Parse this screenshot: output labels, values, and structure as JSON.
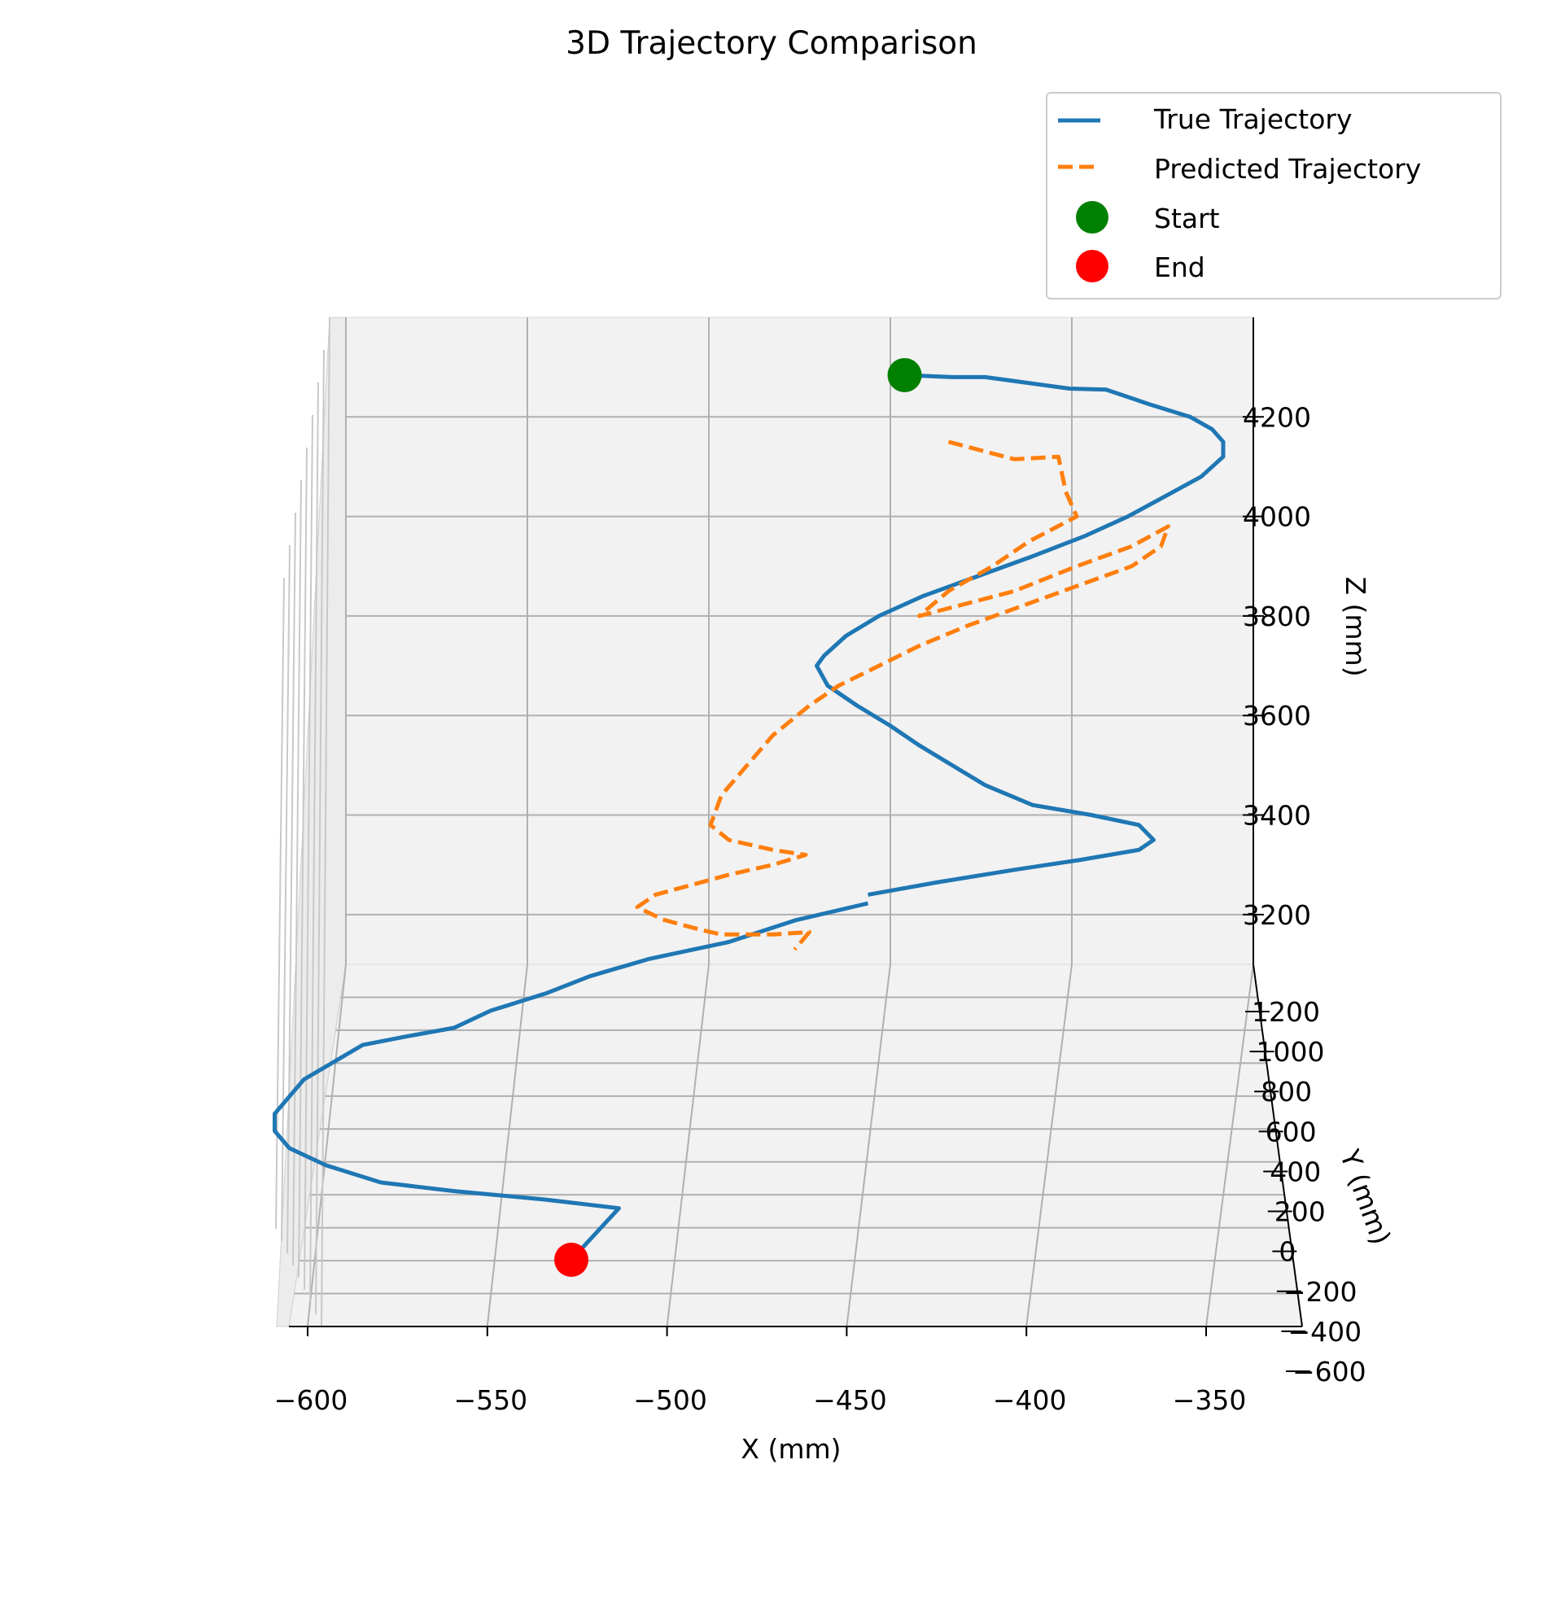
{
  "chart_data": {
    "type": "line",
    "projection": "3d",
    "title": "3D Trajectory Comparison",
    "xlabel": "X (mm)",
    "ylabel": "Y (mm)",
    "zlabel": "Z (mm)",
    "xticks": [
      -600,
      -550,
      -500,
      -450,
      -400,
      -350
    ],
    "xtick_labels": [
      "−600",
      "−550",
      "−500",
      "−450",
      "−400",
      "−350"
    ],
    "yticks": [
      1200,
      1000,
      800,
      600,
      400,
      200,
      0,
      -200,
      -400,
      -600
    ],
    "ytick_labels": [
      "1200",
      "1000",
      "800",
      "600",
      "400",
      "200",
      "0",
      "−200",
      "−400",
      "−600"
    ],
    "zticks": [
      4200,
      4000,
      3800,
      3600,
      3400,
      3200
    ],
    "ztick_labels": [
      "4200",
      "4000",
      "3800",
      "3600",
      "3400",
      "3200"
    ],
    "xlim": [
      -605,
      -335
    ],
    "zlim": [
      3100,
      4400
    ],
    "grid": true,
    "legend_position": "top-right",
    "colors": {
      "true": "#1f77b4",
      "predicted": "#ff7f0e",
      "start": "#008000",
      "end": "#ff0000",
      "pane": "#f2f2f2",
      "grid": "#b0b0b0"
    },
    "series": [
      {
        "name": "True Trajectory",
        "style": "solid",
        "points_projected_xz": [
          [
            -442,
            4284
          ],
          [
            -429,
            4280
          ],
          [
            -420,
            4280
          ],
          [
            -410,
            4270
          ],
          [
            -397,
            4257
          ],
          [
            -387,
            4255
          ],
          [
            -375,
            4225
          ],
          [
            -364,
            4200
          ],
          [
            -358,
            4175
          ],
          [
            -355,
            4150
          ],
          [
            -355,
            4120
          ],
          [
            -361,
            4080
          ],
          [
            -371,
            4040
          ],
          [
            -381,
            4000
          ],
          [
            -393,
            3960
          ],
          [
            -407,
            3920
          ],
          [
            -422,
            3880
          ],
          [
            -437,
            3840
          ],
          [
            -449,
            3800
          ],
          [
            -458,
            3760
          ],
          [
            -464,
            3720
          ],
          [
            -466,
            3700
          ],
          [
            -463,
            3660
          ],
          [
            -455,
            3620
          ],
          [
            -446,
            3580
          ],
          [
            -438,
            3540
          ],
          [
            -429,
            3500
          ],
          [
            -420,
            3460
          ],
          [
            -407,
            3420
          ],
          [
            -391,
            3400
          ],
          [
            -378,
            3380
          ],
          [
            -374,
            3350
          ],
          [
            -378,
            3330
          ],
          [
            -394,
            3310
          ],
          [
            -412,
            3290
          ],
          [
            -433,
            3265
          ],
          [
            -452,
            3240
          ]
        ],
        "points_projected_xz_far": [
          [
            -452,
            3245
          ],
          [
            -472,
            3225
          ],
          [
            -490,
            3200
          ],
          [
            -512,
            3180
          ],
          [
            -528,
            3160
          ],
          [
            -540,
            3140
          ],
          [
            -555,
            3120
          ],
          [
            -565,
            3100
          ],
          [
            -578,
            3090
          ],
          [
            -590,
            3080
          ],
          [
            -598,
            3060
          ],
          [
            -606,
            3040
          ],
          [
            -610,
            3020
          ],
          [
            -614,
            3000
          ],
          [
            -614,
            2980
          ],
          [
            -610,
            2960
          ],
          [
            -600,
            2940
          ],
          [
            -585,
            2920
          ],
          [
            -565,
            2910
          ],
          [
            -540,
            2900
          ],
          [
            -520,
            2890
          ],
          [
            -533,
            2830
          ]
        ]
      },
      {
        "name": "Predicted Trajectory",
        "style": "dashed",
        "points_projected_xz": [
          [
            -430,
            4150
          ],
          [
            -412,
            4115
          ],
          [
            -400,
            4120
          ],
          [
            -398,
            4050
          ],
          [
            -395,
            4000
          ],
          [
            -408,
            3950
          ],
          [
            -418,
            3900
          ],
          [
            -430,
            3850
          ],
          [
            -438,
            3800
          ],
          [
            -412,
            3850
          ],
          [
            -395,
            3900
          ],
          [
            -380,
            3940
          ],
          [
            -370,
            3980
          ],
          [
            -372,
            3940
          ],
          [
            -380,
            3900
          ],
          [
            -395,
            3860
          ],
          [
            -410,
            3820
          ],
          [
            -425,
            3780
          ],
          [
            -438,
            3740
          ],
          [
            -449,
            3700
          ],
          [
            -460,
            3660
          ],
          [
            -468,
            3620
          ],
          [
            -478,
            3560
          ],
          [
            -485,
            3500
          ],
          [
            -492,
            3440
          ],
          [
            -495,
            3380
          ],
          [
            -490,
            3350
          ],
          [
            -478,
            3330
          ],
          [
            -469,
            3320
          ],
          [
            -478,
            3300
          ],
          [
            -490,
            3280
          ],
          [
            -500,
            3260
          ],
          [
            -510,
            3240
          ],
          [
            -515,
            3215
          ],
          [
            -508,
            3190
          ],
          [
            -498,
            3170
          ],
          [
            -492,
            3160
          ],
          [
            -478,
            3160
          ],
          [
            -468,
            3165
          ],
          [
            -472,
            3130
          ]
        ]
      }
    ],
    "markers": [
      {
        "name": "Start",
        "x": -442,
        "z": 4284
      },
      {
        "name": "End",
        "x": -533,
        "z": 2830
      }
    ]
  }
}
